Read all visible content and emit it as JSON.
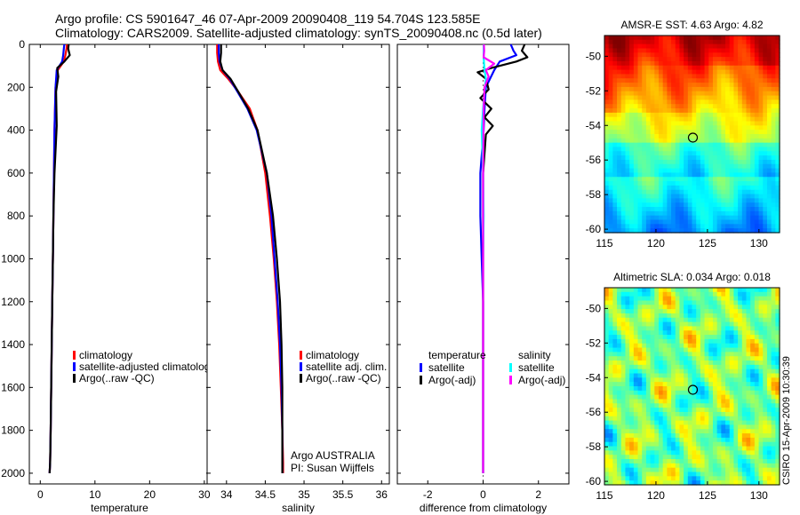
{
  "header": {
    "line1": "Argo profile: CS 5901647_46 07-Apr-2009 20090408_119 54.704S 123.585E",
    "line2": "Climatology: CARS2009. Satellite-adjusted climatology: synTS_20090408.nc (0.5d later)"
  },
  "credit": "CSIRO 15-Apr-2009 10:30:39",
  "colors": {
    "climatology": "#ff0000",
    "satellite": "#0000ff",
    "argo": "#000000",
    "sal_satellite": "#00ffff",
    "sal_argo": "#ff00ff"
  },
  "chart_data": [
    {
      "type": "line",
      "id": "temperature_profile",
      "xlabel": "temperature",
      "ylabel": "",
      "xlim": [
        -2,
        31
      ],
      "ylim": [
        2050,
        0
      ],
      "xticks": [
        0,
        10,
        20,
        30
      ],
      "yticks": [
        0,
        200,
        400,
        600,
        800,
        1000,
        1200,
        1400,
        1600,
        1800,
        2000
      ],
      "series": [
        {
          "name": "climatology",
          "color": "#ff0000",
          "x": [
            4.9,
            4.8,
            4.6,
            4.3,
            3.2,
            2.8,
            2.7,
            2.6,
            2.5,
            2.4,
            2.3,
            2.2,
            2.1,
            2.0,
            1.9,
            1.8,
            1.7
          ],
          "y": [
            0,
            20,
            50,
            80,
            120,
            200,
            300,
            400,
            600,
            800,
            1000,
            1200,
            1400,
            1600,
            1800,
            1950,
            2000
          ]
        },
        {
          "name": "satellite-adjusted climatology",
          "color": "#0000ff",
          "x": [
            4.4,
            4.3,
            4.2,
            4.0,
            3.0,
            2.8,
            2.7,
            2.6,
            2.5,
            2.4,
            2.3,
            2.2,
            2.1,
            2.0,
            1.9,
            1.8,
            1.7
          ],
          "y": [
            0,
            20,
            50,
            80,
            120,
            200,
            300,
            400,
            600,
            800,
            1000,
            1200,
            1400,
            1600,
            1800,
            1950,
            2000
          ]
        },
        {
          "name": "Argo(..raw -QC)",
          "color": "#000000",
          "x": [
            5.2,
            5.1,
            5.4,
            4.4,
            3.1,
            3.3,
            2.9,
            3.0,
            2.6,
            2.4,
            2.3,
            2.2,
            2.1,
            2.0,
            1.9,
            1.8,
            1.7
          ],
          "y": [
            0,
            20,
            50,
            80,
            110,
            150,
            220,
            380,
            600,
            800,
            1000,
            1200,
            1400,
            1600,
            1800,
            1950,
            2000
          ]
        }
      ],
      "legend": [
        "climatology",
        "satellite-adjusted climatolog",
        "Argo(..raw -QC)"
      ],
      "legend_position": "center"
    },
    {
      "type": "line",
      "id": "salinity_profile",
      "xlabel": "salinity",
      "ylabel": "",
      "xlim": [
        33.75,
        36.1
      ],
      "ylim": [
        2050,
        0
      ],
      "xticks": [
        34,
        34.5,
        35,
        35.5,
        36
      ],
      "series": [
        {
          "name": "climatology",
          "color": "#ff0000",
          "x": [
            33.88,
            33.88,
            33.89,
            33.92,
            34.02,
            34.15,
            34.3,
            34.4,
            34.5,
            34.56,
            34.61,
            34.65,
            34.68,
            34.7,
            34.72,
            34.73,
            34.73
          ],
          "y": [
            0,
            40,
            80,
            120,
            160,
            220,
            300,
            400,
            600,
            800,
            1000,
            1200,
            1400,
            1600,
            1800,
            1950,
            2000
          ]
        },
        {
          "name": "satellite adj. clim.",
          "color": "#0000ff",
          "x": [
            33.9,
            33.9,
            33.91,
            33.95,
            34.04,
            34.14,
            34.27,
            34.39,
            34.52,
            34.58,
            34.62,
            34.66,
            34.69,
            34.71,
            34.72,
            34.72,
            34.72
          ],
          "y": [
            0,
            40,
            80,
            120,
            160,
            220,
            300,
            400,
            600,
            800,
            1000,
            1200,
            1400,
            1600,
            1800,
            1950,
            2000
          ]
        },
        {
          "name": "Argo(..raw -QC)",
          "color": "#000000",
          "x": [
            33.93,
            33.93,
            33.92,
            33.95,
            34.05,
            34.15,
            34.28,
            34.4,
            34.52,
            34.6,
            34.65,
            34.69,
            34.71,
            34.72,
            34.72,
            34.72,
            34.72
          ],
          "y": [
            0,
            40,
            80,
            120,
            160,
            220,
            300,
            400,
            600,
            800,
            1000,
            1200,
            1400,
            1600,
            1800,
            1950,
            2000
          ]
        }
      ],
      "legend": [
        "climatology",
        "satellite adj. clim.",
        "Argo(..raw -QC)"
      ],
      "annotation": [
        "Argo AUSTRALIA",
        "PI: Susan Wijffels"
      ]
    },
    {
      "type": "line",
      "id": "difference_profile",
      "xlabel": "difference from climatology",
      "ylabel": "",
      "xlim": [
        -3.1,
        3.1
      ],
      "ylim": [
        2050,
        0
      ],
      "xticks": [
        -2,
        0,
        2
      ],
      "series": [
        {
          "name": "temperature satellite",
          "color": "#0000ff",
          "x": [
            1.0,
            1.1,
            1.2,
            0.6,
            0.4,
            0.1,
            0.05,
            0.02,
            -0.1,
            -0.1,
            -0.05,
            0,
            0,
            0,
            0,
            0,
            0
          ],
          "y": [
            0,
            30,
            50,
            80,
            120,
            200,
            300,
            400,
            600,
            800,
            1000,
            1200,
            1400,
            1600,
            1800,
            1950,
            2000
          ]
        },
        {
          "name": "temperature Argo(-adj)",
          "color": "#000000",
          "x": [
            1.5,
            1.4,
            1.6,
            1.2,
            0.3,
            -0.2,
            0.1,
            0.2,
            -0.1,
            0.3,
            0.05,
            0.35,
            0.1,
            0,
            0,
            0,
            0,
            0,
            0
          ],
          "y": [
            0,
            30,
            60,
            80,
            110,
            130,
            160,
            210,
            250,
            300,
            340,
            380,
            420,
            600,
            800,
            1000,
            1400,
            1800,
            2000
          ]
        },
        {
          "name": "salinity satellite",
          "color": "#00ffff",
          "x": [
            0.02,
            0.02,
            0.03,
            0.05,
            0.1,
            0.05,
            0.0,
            -0.05,
            0.0,
            0.02,
            0.0,
            0.0,
            0.0,
            0.0,
            0.0,
            0.0,
            0.0
          ],
          "y": [
            0,
            40,
            80,
            120,
            160,
            220,
            300,
            400,
            600,
            800,
            1000,
            1200,
            1400,
            1600,
            1800,
            1950,
            2000
          ]
        },
        {
          "name": "salinity Argo(-adj)",
          "color": "#ff00ff",
          "x": [
            0.03,
            0.04,
            0.02,
            0.4,
            0.1,
            0.2,
            0.05,
            0.02,
            0.0,
            0.0,
            0.0,
            0.0,
            0.0
          ],
          "y": [
            0,
            30,
            60,
            90,
            120,
            150,
            200,
            300,
            600,
            1000,
            1400,
            1800,
            2000
          ]
        }
      ],
      "legend_groups": [
        {
          "title": "temperature",
          "entries": [
            {
              "label": "satellite",
              "color": "#0000ff"
            },
            {
              "label": "Argo(-adj)",
              "color": "#000000"
            }
          ]
        },
        {
          "title": "salinity",
          "entries": [
            {
              "label": "satellite",
              "color": "#00ffff"
            },
            {
              "label": "Argo(-adj)",
              "color": "#ff00ff"
            }
          ]
        }
      ]
    },
    {
      "type": "heatmap",
      "id": "sst_map",
      "title": "AMSR-E SST: 4.63 Argo: 4.82",
      "xlim": [
        115,
        132
      ],
      "ylim": [
        -60.2,
        -48.8
      ],
      "xticks": [
        115,
        120,
        125,
        130
      ],
      "yticks": [
        -50,
        -52,
        -54,
        -56,
        -58,
        -60
      ],
      "marker": {
        "lon": 123.585,
        "lat": -54.704
      },
      "colormap": "jet"
    },
    {
      "type": "heatmap",
      "id": "sla_map",
      "title": "Altimetric SLA: 0.034 Argo: 0.018",
      "xlim": [
        115,
        132
      ],
      "ylim": [
        -60.2,
        -48.8
      ],
      "xticks": [
        115,
        120,
        125,
        130
      ],
      "yticks": [
        -50,
        -52,
        -54,
        -56,
        -58,
        -60
      ],
      "marker": {
        "lon": 123.585,
        "lat": -54.704
      },
      "colormap": "jet"
    }
  ]
}
